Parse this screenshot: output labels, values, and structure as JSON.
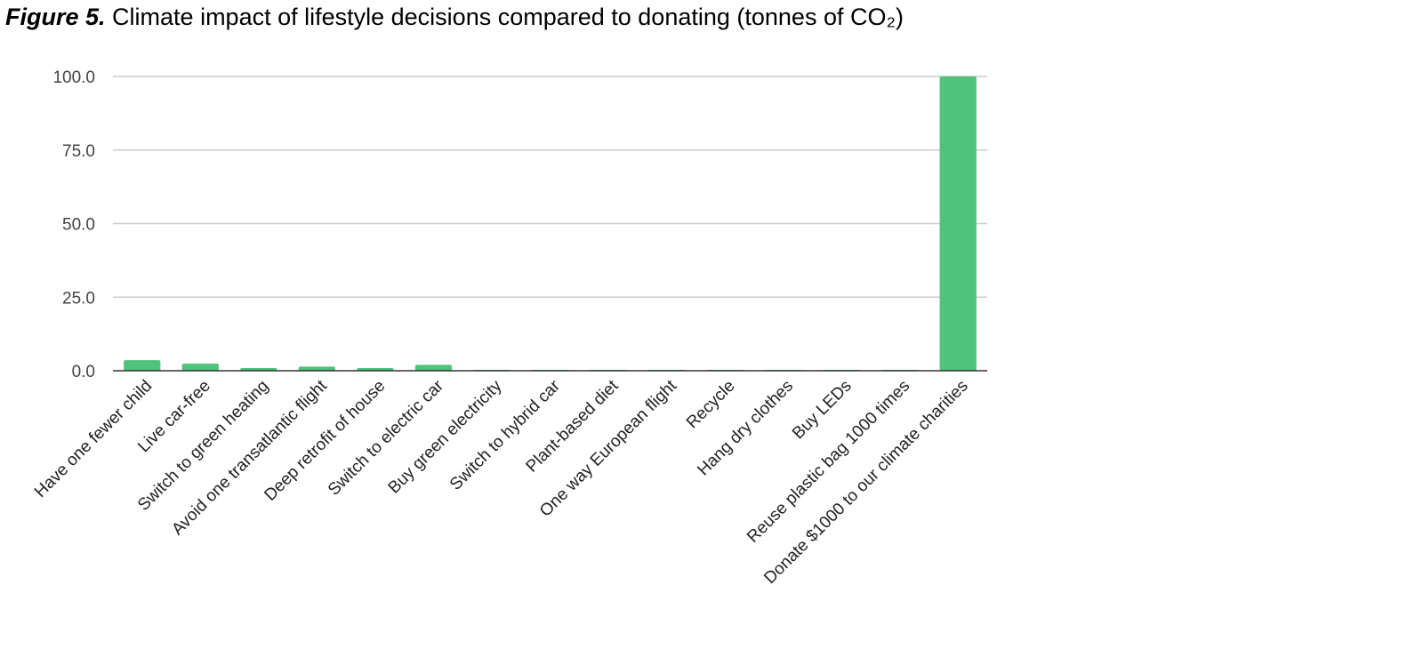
{
  "figure": {
    "label": "Figure 5.",
    "caption": "Climate impact of lifestyle decisions compared to donating (tonnes of CO₂)"
  },
  "colors": {
    "bar": "#4fc27c",
    "grid": "#cccccc",
    "axis": "#333333"
  },
  "chart_data": {
    "type": "bar",
    "title": "",
    "xlabel": "",
    "ylabel": "",
    "ylim": [
      0,
      100
    ],
    "y_ticks": [
      "0.0",
      "25.0",
      "50.0",
      "75.0",
      "100.0"
    ],
    "grid": true,
    "legend": "none",
    "categories": [
      "Have one fewer child",
      "Live car-free",
      "Switch to green heating",
      "Avoid one transatlantic flight",
      "Deep retrofit of house",
      "Switch to electric car",
      "Buy green electricity",
      "Switch to hybrid car",
      "Plant-based diet",
      "One way European flight",
      "Recycle",
      "Hang dry clothes",
      "Buy LEDs",
      "Reuse plastic bag 1000 times",
      "Donate $1000 to our climate charities"
    ],
    "values": [
      3.6,
      2.4,
      0.9,
      1.4,
      0.9,
      2.0,
      0.3,
      0.2,
      0.2,
      0.2,
      0.2,
      0.2,
      0.1,
      0.1,
      100.0
    ]
  }
}
